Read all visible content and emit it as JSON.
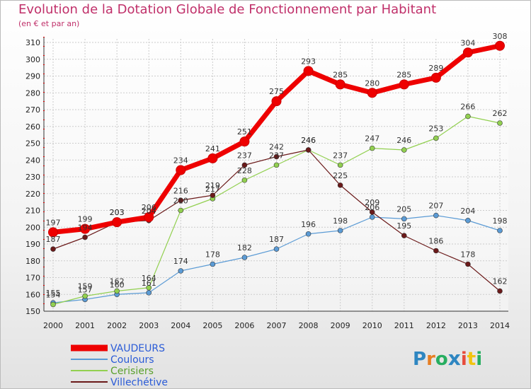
{
  "chart_data": {
    "type": "line",
    "title": "Evolution de la Dotation Globale de Fonctionnement par Habitant",
    "subtitle": "(en € et par an)",
    "x": [
      "2000",
      "2001",
      "2002",
      "2003",
      "2004",
      "2005",
      "2006",
      "2007",
      "2008",
      "2009",
      "2010",
      "2011",
      "2012",
      "2013",
      "2014"
    ],
    "ylim": [
      150,
      310
    ],
    "yticks": [
      150,
      160,
      170,
      180,
      190,
      200,
      210,
      220,
      230,
      240,
      250,
      260,
      270,
      280,
      290,
      300,
      310
    ],
    "grid": true,
    "series": [
      {
        "name": "VAUDEURS",
        "color": "#ee0000",
        "values": [
          197,
          199,
          203,
          206,
          234,
          241,
          251,
          275,
          293,
          285,
          280,
          285,
          289,
          304,
          308
        ]
      },
      {
        "name": "Coulours",
        "color": "#5b9bd5",
        "values": [
          155,
          157,
          160,
          161,
          174,
          178,
          182,
          187,
          196,
          198,
          206,
          205,
          207,
          204,
          198
        ]
      },
      {
        "name": "Cerisiers",
        "color": "#92d050",
        "values": [
          154,
          159,
          162,
          164,
          210,
          217,
          228,
          237,
          246,
          237,
          247,
          246,
          253,
          266,
          262
        ]
      },
      {
        "name": "Villechétive",
        "color": "#6b1a1a",
        "values": [
          187,
          194,
          203,
          204,
          216,
          219,
          237,
          242,
          246,
          225,
          209,
          195,
          186,
          178,
          162
        ]
      }
    ]
  },
  "logo": {
    "text": "Proxiti"
  }
}
